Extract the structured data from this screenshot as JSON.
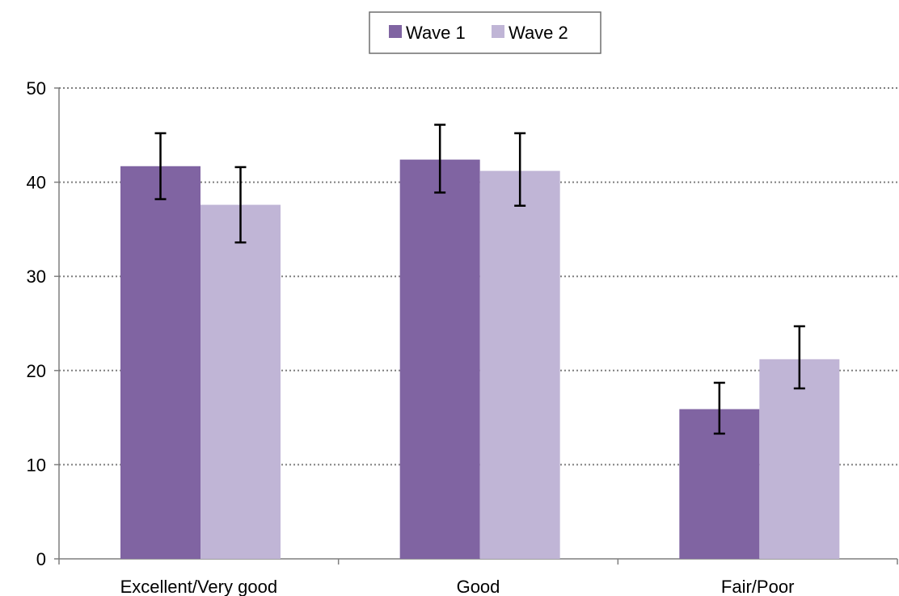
{
  "chart_data": {
    "type": "bar",
    "title": "",
    "xlabel": "",
    "ylabel": "",
    "categories": [
      "Excellent/Very good",
      "Good",
      "Fair/Poor"
    ],
    "series": [
      {
        "name": "Wave 1",
        "color": "#8064a2",
        "values": [
          41.7,
          42.4,
          15.9
        ],
        "error_low": [
          38.2,
          38.9,
          13.3
        ],
        "error_high": [
          45.2,
          46.1,
          18.7
        ]
      },
      {
        "name": "Wave 2",
        "color": "#c0b5d6",
        "values": [
          37.6,
          41.2,
          21.2
        ],
        "error_low": [
          33.6,
          37.5,
          18.1
        ],
        "error_high": [
          41.6,
          45.2,
          24.7
        ]
      }
    ],
    "ylim": [
      0,
      50
    ],
    "yticks": [
      0,
      10,
      20,
      30,
      40,
      50
    ],
    "grid": "horizontal dotted",
    "legend_position": "top-center"
  }
}
